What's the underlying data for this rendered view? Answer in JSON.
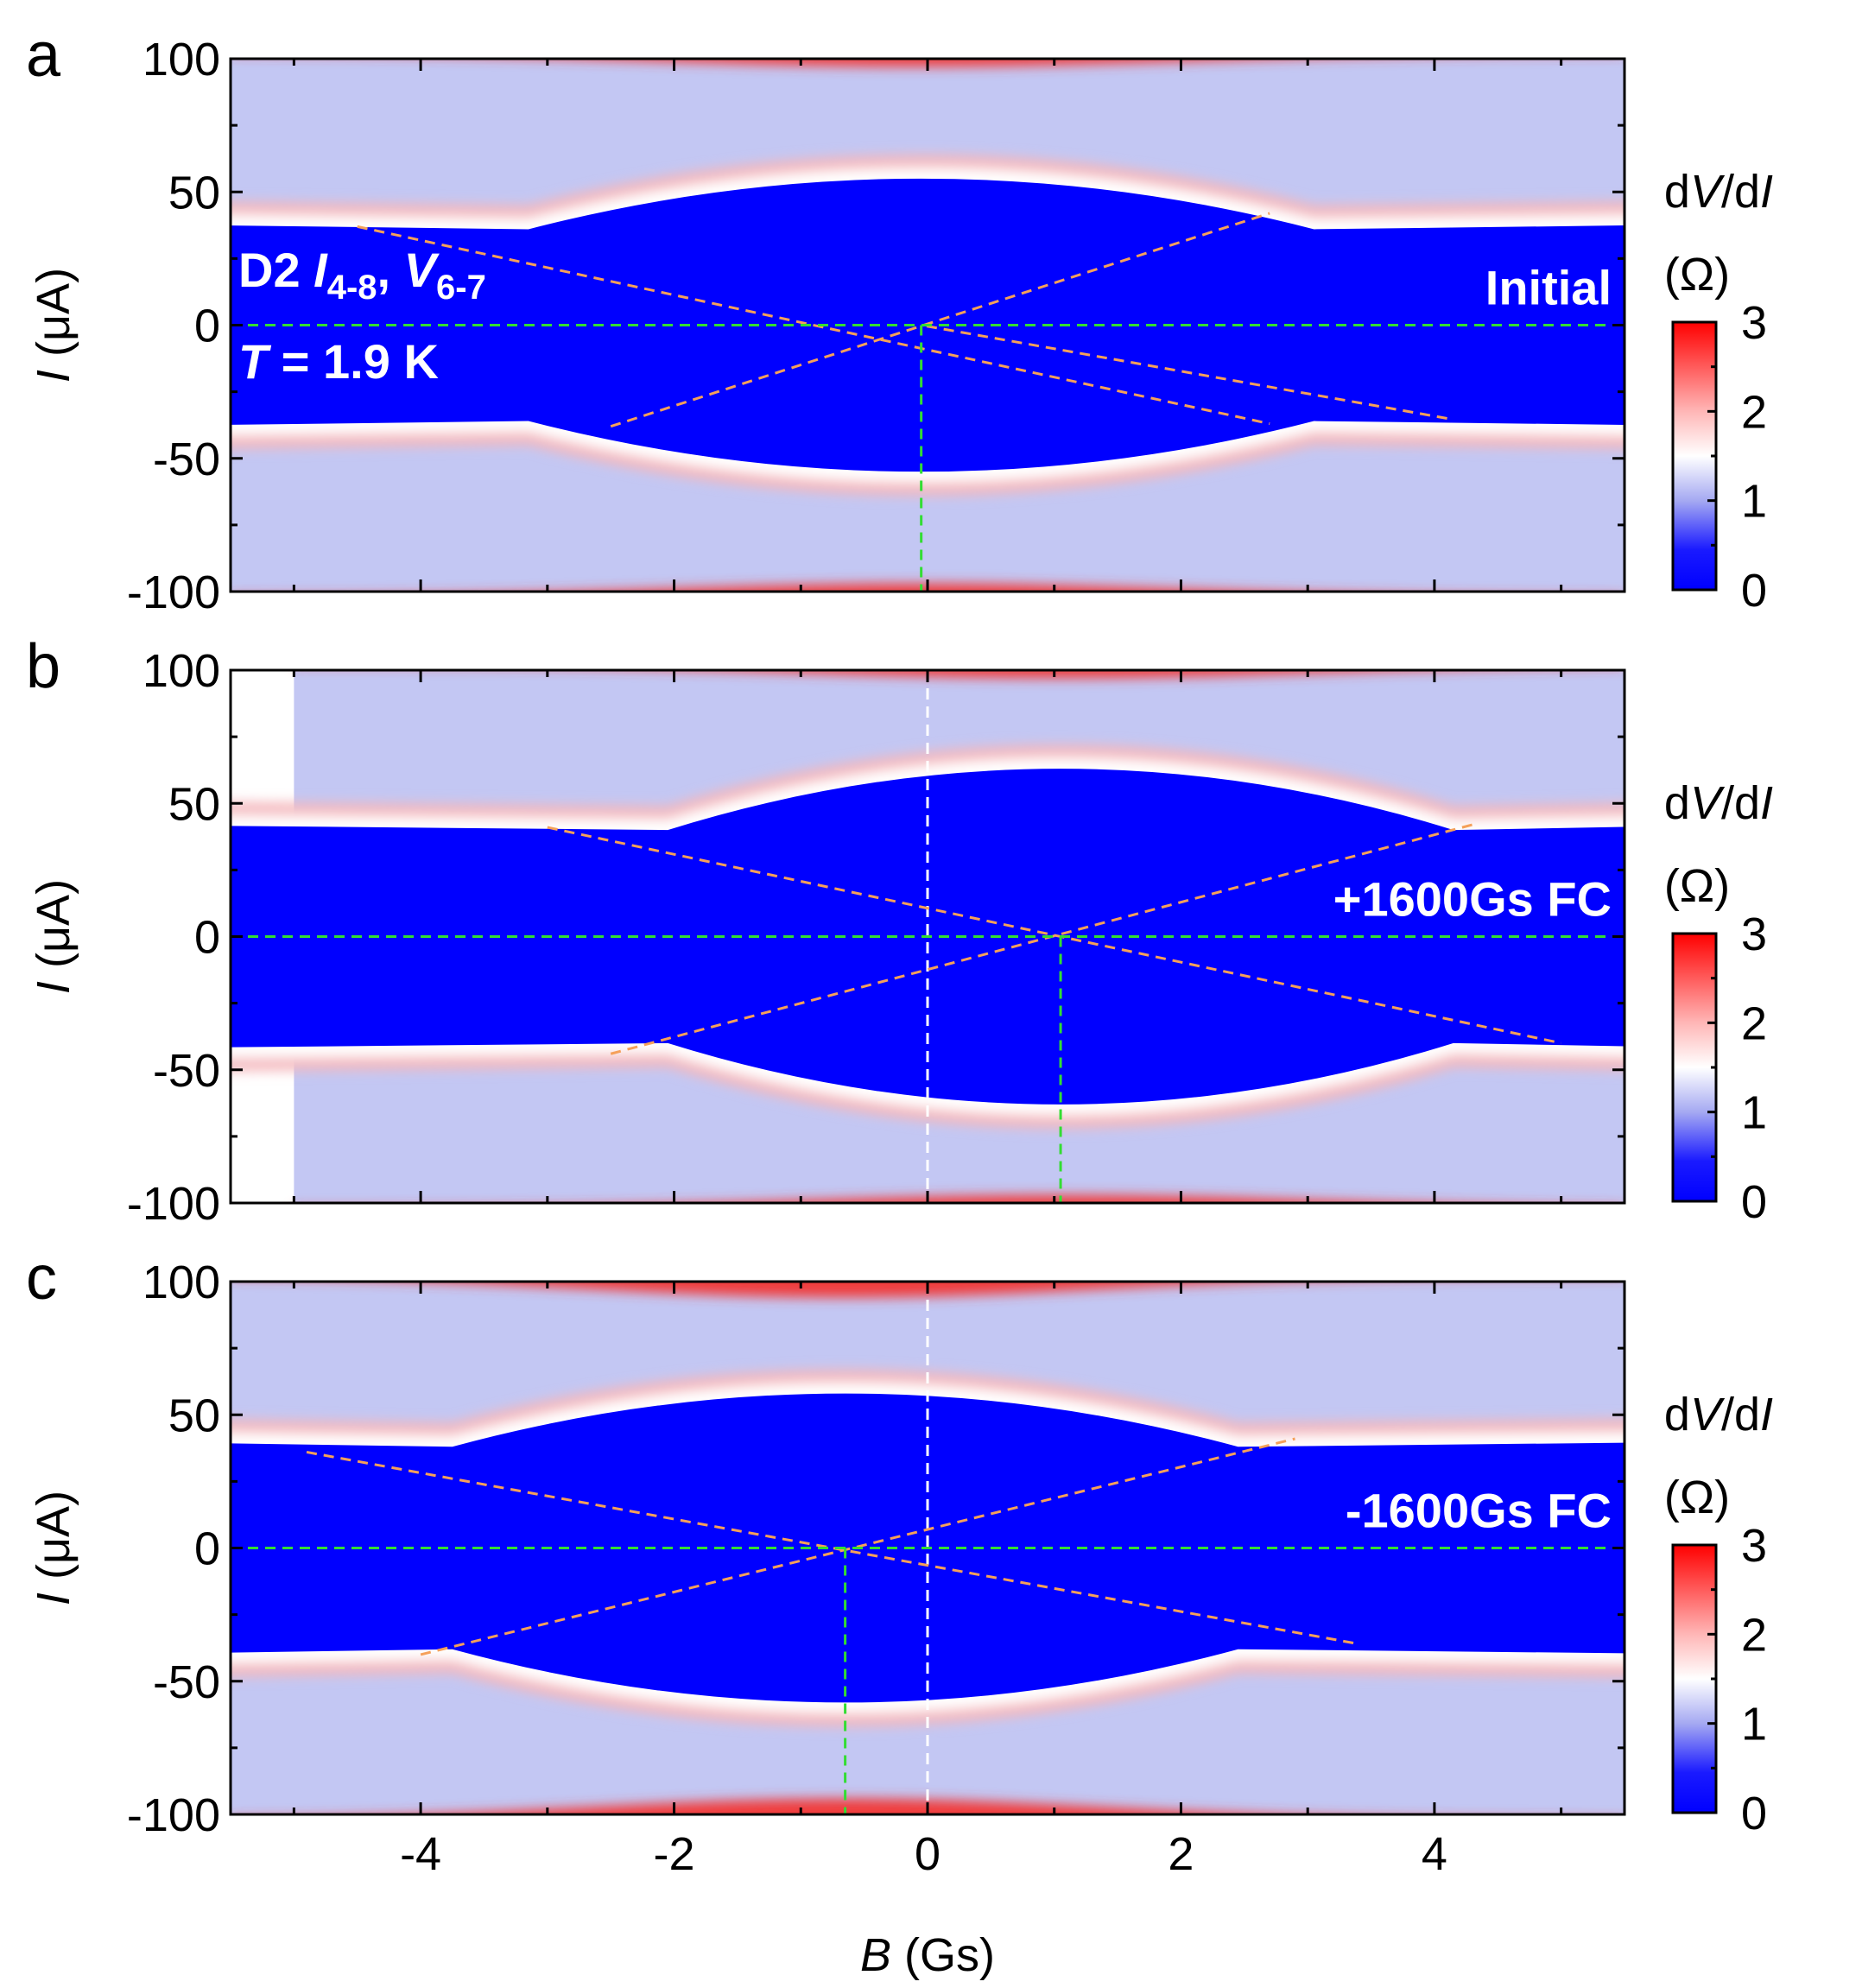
{
  "chart_data": {
    "type": "heatmap",
    "shared": {
      "xlabel_symbol": "B",
      "xlabel_unit": "(Gs)",
      "ylabel_symbol": "I",
      "ylabel_unit": "(μA)",
      "xlim": [
        -5.5,
        5.5
      ],
      "ylim": [
        -100,
        100
      ],
      "x_ticks": [
        -4,
        -2,
        0,
        2,
        4
      ],
      "x_tick_labels": [
        "-4",
        "-2",
        "0",
        "2",
        "4"
      ],
      "y_ticks": [
        100,
        50,
        0,
        -50,
        -100
      ],
      "y_tick_labels": [
        "100",
        "50",
        "0",
        "-50",
        "-100"
      ],
      "colorbar": {
        "title_prefix": "d",
        "title_V": "V",
        "title_mid": "/d",
        "title_I": "I",
        "unit": "(Ω)",
        "range": [
          0,
          3
        ],
        "ticks": [
          3,
          2,
          1,
          0
        ],
        "tick_labels": [
          "3",
          "2",
          "1",
          "0"
        ],
        "colors": [
          "#0000ff",
          "#ffffff",
          "#ff0000"
        ]
      }
    },
    "panels": [
      {
        "letter": "a",
        "label": "Initial",
        "device_text": "D2",
        "current_symbol": "I",
        "current_sub": "4-8",
        "comma": ",",
        "voltage_symbol": "V",
        "voltage_sub": "6-7",
        "temperature_symbol": "T",
        "temperature_value": "= 1.9 K",
        "data_x_range": [
          -5.5,
          5.5
        ],
        "center_B": -0.05,
        "central_lobe_Ic": 55,
        "side_lobe_Ic": 38,
        "orange_lines": [
          [
            -4.5,
            37,
            2.7,
            -37
          ],
          [
            -2.5,
            -38,
            2.7,
            42
          ],
          [
            4.1,
            -35,
            -0.05,
            0
          ]
        ],
        "green_vertical_B": -0.05,
        "white_vertical_B": null
      },
      {
        "letter": "b",
        "label": "+1600Gs FC",
        "data_x_range": [
          -5.0,
          5.5
        ],
        "center_B": 1.05,
        "central_lobe_Ic": 63,
        "side_lobe_Ic": 42,
        "orange_lines": [
          [
            -3.0,
            41,
            5.0,
            -40
          ],
          [
            -2.5,
            -44,
            4.3,
            42
          ]
        ],
        "green_vertical_B": 1.05,
        "white_vertical_B": 0.0
      },
      {
        "letter": "c",
        "label": "-1600Gs FC",
        "data_x_range": [
          -5.5,
          5.5
        ],
        "center_B": -0.65,
        "central_lobe_Ic": 58,
        "side_lobe_Ic": 40,
        "orange_lines": [
          [
            -4.9,
            36,
            3.4,
            -36
          ],
          [
            -4.0,
            -40,
            2.9,
            41
          ]
        ],
        "green_vertical_B": -0.65,
        "white_vertical_B": 0.0
      }
    ]
  }
}
